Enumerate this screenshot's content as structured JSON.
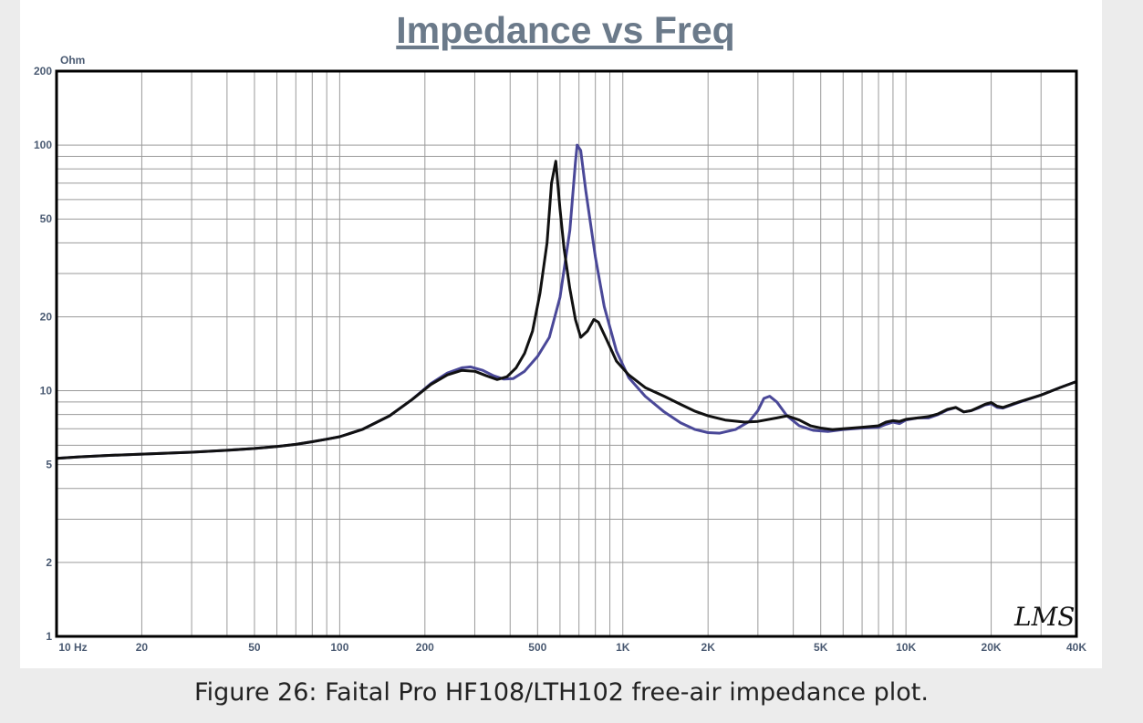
{
  "caption": "Figure 26: Faital Pro HF108/LTH102 free-air impedance plot.",
  "chart_data": {
    "type": "line",
    "title": "Impedance vs Freq",
    "ylabel": "Ohm",
    "xlabel": "",
    "xscale": "log",
    "yscale": "log",
    "xlim": [
      10,
      40000
    ],
    "ylim": [
      1,
      200
    ],
    "grid": true,
    "x_tick_labels": [
      {
        "value": 10,
        "label": "10  Hz"
      },
      {
        "value": 20,
        "label": "20"
      },
      {
        "value": 50,
        "label": "50"
      },
      {
        "value": 100,
        "label": "100"
      },
      {
        "value": 200,
        "label": "200"
      },
      {
        "value": 500,
        "label": "500"
      },
      {
        "value": 1000,
        "label": "1K"
      },
      {
        "value": 2000,
        "label": "2K"
      },
      {
        "value": 5000,
        "label": "5K"
      },
      {
        "value": 10000,
        "label": "10K"
      },
      {
        "value": 20000,
        "label": "20K"
      },
      {
        "value": 40000,
        "label": "40K"
      }
    ],
    "y_tick_labels": [
      {
        "value": 1,
        "label": "1"
      },
      {
        "value": 2,
        "label": "2"
      },
      {
        "value": 5,
        "label": "5"
      },
      {
        "value": 10,
        "label": "10"
      },
      {
        "value": 20,
        "label": "20"
      },
      {
        "value": 50,
        "label": "50"
      },
      {
        "value": 100,
        "label": "100"
      },
      {
        "value": 200,
        "label": "200"
      }
    ],
    "watermark": "LMS",
    "series": [
      {
        "color": "#4a4898",
        "values": [
          [
            10,
            5.3
          ],
          [
            12,
            5.38
          ],
          [
            15,
            5.45
          ],
          [
            20,
            5.52
          ],
          [
            30,
            5.62
          ],
          [
            40,
            5.72
          ],
          [
            50,
            5.82
          ],
          [
            60,
            5.93
          ],
          [
            70,
            6.05
          ],
          [
            80,
            6.2
          ],
          [
            90,
            6.35
          ],
          [
            100,
            6.5
          ],
          [
            120,
            6.95
          ],
          [
            150,
            7.9
          ],
          [
            180,
            9.2
          ],
          [
            210,
            10.7
          ],
          [
            240,
            11.8
          ],
          [
            270,
            12.4
          ],
          [
            290,
            12.5
          ],
          [
            320,
            12.1
          ],
          [
            350,
            11.5
          ],
          [
            380,
            11.15
          ],
          [
            410,
            11.2
          ],
          [
            450,
            12.0
          ],
          [
            500,
            13.8
          ],
          [
            550,
            16.5
          ],
          [
            600,
            24
          ],
          [
            650,
            45
          ],
          [
            680,
            85
          ],
          [
            690,
            100
          ],
          [
            710,
            95
          ],
          [
            740,
            65
          ],
          [
            800,
            35
          ],
          [
            860,
            22
          ],
          [
            950,
            14.5
          ],
          [
            1050,
            11.3
          ],
          [
            1200,
            9.5
          ],
          [
            1400,
            8.2
          ],
          [
            1600,
            7.4
          ],
          [
            1800,
            6.95
          ],
          [
            2000,
            6.75
          ],
          [
            2200,
            6.72
          ],
          [
            2500,
            6.95
          ],
          [
            2800,
            7.5
          ],
          [
            3000,
            8.3
          ],
          [
            3150,
            9.3
          ],
          [
            3300,
            9.5
          ],
          [
            3500,
            9.0
          ],
          [
            3800,
            7.9
          ],
          [
            4200,
            7.2
          ],
          [
            4700,
            6.9
          ],
          [
            5300,
            6.82
          ],
          [
            6000,
            6.95
          ],
          [
            7000,
            7.05
          ],
          [
            8000,
            7.1
          ],
          [
            8500,
            7.3
          ],
          [
            9000,
            7.45
          ],
          [
            9500,
            7.35
          ],
          [
            10000,
            7.6
          ],
          [
            11000,
            7.75
          ],
          [
            12000,
            7.75
          ],
          [
            13000,
            8.0
          ],
          [
            14000,
            8.35
          ],
          [
            15000,
            8.55
          ],
          [
            16000,
            8.2
          ],
          [
            17000,
            8.3
          ],
          [
            18000,
            8.5
          ],
          [
            19000,
            8.75
          ],
          [
            20000,
            8.85
          ],
          [
            21000,
            8.55
          ],
          [
            22000,
            8.5
          ],
          [
            25000,
            8.95
          ],
          [
            30000,
            9.6
          ],
          [
            35000,
            10.3
          ],
          [
            40000,
            10.9
          ]
        ]
      },
      {
        "color": "#111111",
        "values": [
          [
            10,
            5.3
          ],
          [
            12,
            5.38
          ],
          [
            15,
            5.45
          ],
          [
            20,
            5.52
          ],
          [
            30,
            5.62
          ],
          [
            40,
            5.72
          ],
          [
            50,
            5.82
          ],
          [
            60,
            5.93
          ],
          [
            70,
            6.05
          ],
          [
            80,
            6.2
          ],
          [
            90,
            6.35
          ],
          [
            100,
            6.5
          ],
          [
            120,
            6.95
          ],
          [
            150,
            7.9
          ],
          [
            180,
            9.2
          ],
          [
            210,
            10.6
          ],
          [
            240,
            11.6
          ],
          [
            270,
            12.1
          ],
          [
            300,
            12.0
          ],
          [
            330,
            11.5
          ],
          [
            360,
            11.1
          ],
          [
            390,
            11.4
          ],
          [
            420,
            12.4
          ],
          [
            450,
            14.2
          ],
          [
            480,
            17.5
          ],
          [
            510,
            25
          ],
          [
            540,
            40
          ],
          [
            560,
            70
          ],
          [
            580,
            86
          ],
          [
            600,
            55
          ],
          [
            620,
            38
          ],
          [
            650,
            26
          ],
          [
            680,
            19.5
          ],
          [
            710,
            16.5
          ],
          [
            750,
            17.5
          ],
          [
            790,
            19.5
          ],
          [
            820,
            19.0
          ],
          [
            880,
            16.0
          ],
          [
            950,
            13.2
          ],
          [
            1050,
            11.6
          ],
          [
            1200,
            10.3
          ],
          [
            1400,
            9.5
          ],
          [
            1600,
            8.8
          ],
          [
            1800,
            8.25
          ],
          [
            2000,
            7.9
          ],
          [
            2300,
            7.6
          ],
          [
            2700,
            7.45
          ],
          [
            3000,
            7.5
          ],
          [
            3500,
            7.75
          ],
          [
            3800,
            7.9
          ],
          [
            4200,
            7.6
          ],
          [
            4600,
            7.2
          ],
          [
            5000,
            7.05
          ],
          [
            5500,
            6.95
          ],
          [
            6000,
            7.0
          ],
          [
            7000,
            7.1
          ],
          [
            8000,
            7.2
          ],
          [
            8500,
            7.45
          ],
          [
            9000,
            7.55
          ],
          [
            9500,
            7.5
          ],
          [
            10000,
            7.65
          ],
          [
            11000,
            7.75
          ],
          [
            12000,
            7.85
          ],
          [
            13000,
            8.05
          ],
          [
            14000,
            8.4
          ],
          [
            15000,
            8.55
          ],
          [
            16000,
            8.2
          ],
          [
            17000,
            8.3
          ],
          [
            18000,
            8.55
          ],
          [
            19000,
            8.8
          ],
          [
            20000,
            8.95
          ],
          [
            21000,
            8.65
          ],
          [
            22000,
            8.55
          ],
          [
            25000,
            9.0
          ],
          [
            30000,
            9.6
          ],
          [
            35000,
            10.3
          ],
          [
            40000,
            10.9
          ]
        ]
      }
    ]
  }
}
